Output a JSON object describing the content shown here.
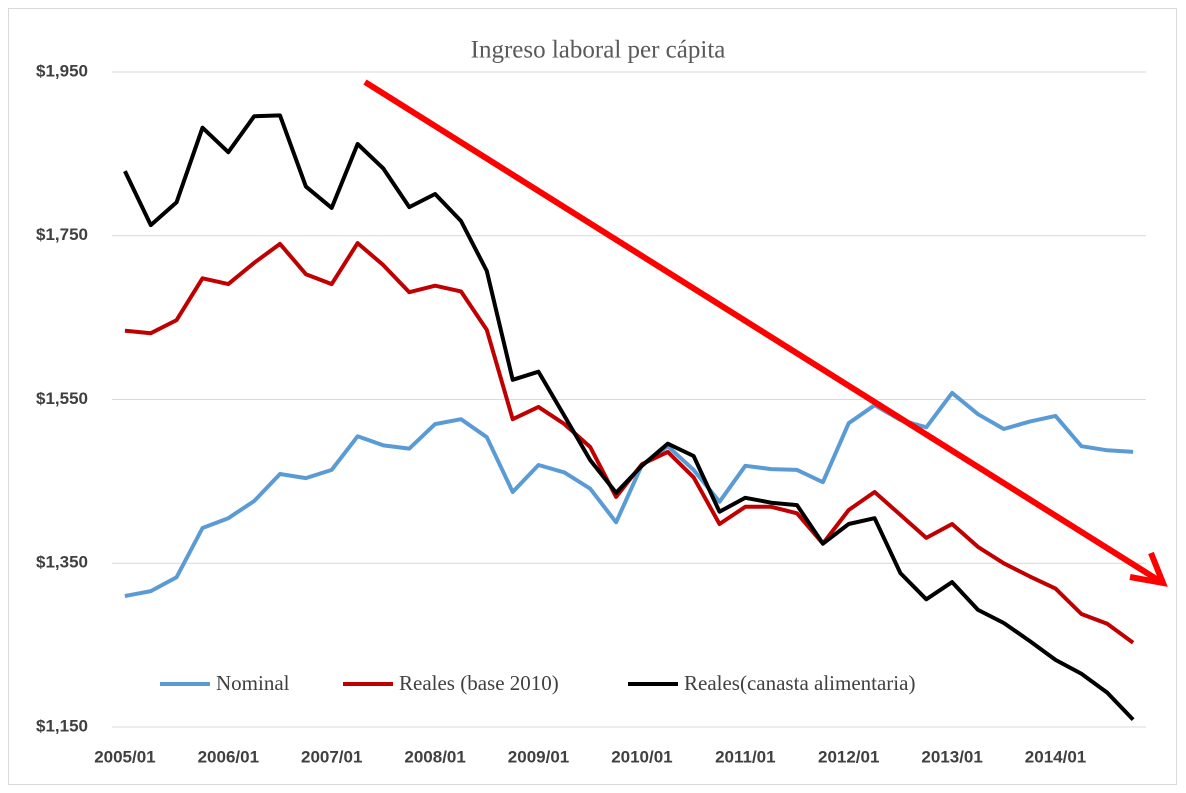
{
  "chart_data": {
    "type": "line",
    "title": "Ingreso laboral per cápita",
    "categories": [
      "2005/01",
      null,
      null,
      null,
      "2006/01",
      null,
      null,
      null,
      "2007/01",
      null,
      null,
      null,
      "2008/01",
      null,
      null,
      null,
      "2009/01",
      null,
      null,
      null,
      "2010/01",
      null,
      null,
      null,
      "2011/01",
      null,
      null,
      null,
      "2012/01",
      null,
      null,
      null,
      "2013/01",
      null,
      null,
      null,
      "2014/01",
      null,
      null,
      null
    ],
    "series": [
      {
        "name": "Nominal",
        "color": "#5b9bd5",
        "values": [
          1310,
          1316,
          1333,
          1393,
          1405,
          1426,
          1459,
          1454,
          1464,
          1505,
          1494,
          1490,
          1520,
          1526,
          1504,
          1437,
          1470,
          1461,
          1441,
          1400,
          1470,
          1493,
          1464,
          1425,
          1469,
          1465,
          1464,
          1449,
          1521,
          1543,
          1525,
          1516,
          1558,
          1532,
          1514,
          1523,
          1530,
          1493,
          1488,
          1486
        ]
      },
      {
        "name": "Reales (base 2010)",
        "color": "#c00000",
        "values": [
          1634,
          1631,
          1647,
          1698,
          1691,
          1717,
          1740,
          1703,
          1691,
          1741,
          1714,
          1681,
          1689,
          1682,
          1635,
          1526,
          1541,
          1520,
          1492,
          1431,
          1471,
          1486,
          1455,
          1398,
          1419,
          1419,
          1411,
          1374,
          1415,
          1437,
          1409,
          1381,
          1398,
          1370,
          1350,
          1334,
          1319,
          1288,
          1276,
          1253
        ]
      },
      {
        "name": "Reales(canasta alimentaria)",
        "color": "#000000",
        "values": [
          1829,
          1763,
          1791,
          1882,
          1852,
          1896,
          1897,
          1810,
          1784,
          1862,
          1832,
          1785,
          1801,
          1768,
          1707,
          1574,
          1584,
          1530,
          1476,
          1436,
          1469,
          1496,
          1481,
          1413,
          1430,
          1424,
          1421,
          1374,
          1398,
          1405,
          1338,
          1306,
          1327,
          1293,
          1277,
          1255,
          1232,
          1215,
          1192,
          1159
        ]
      }
    ],
    "ylim": [
      1150,
      1950
    ],
    "yticks": [
      {
        "value": 1150,
        "label": "$1,150"
      },
      {
        "value": 1350,
        "label": "$1,350"
      },
      {
        "value": 1550,
        "label": "$1,550"
      },
      {
        "value": 1750,
        "label": "$1,750"
      },
      {
        "value": 1950,
        "label": "$1,950"
      }
    ],
    "grid": true,
    "legend": "bottom"
  }
}
